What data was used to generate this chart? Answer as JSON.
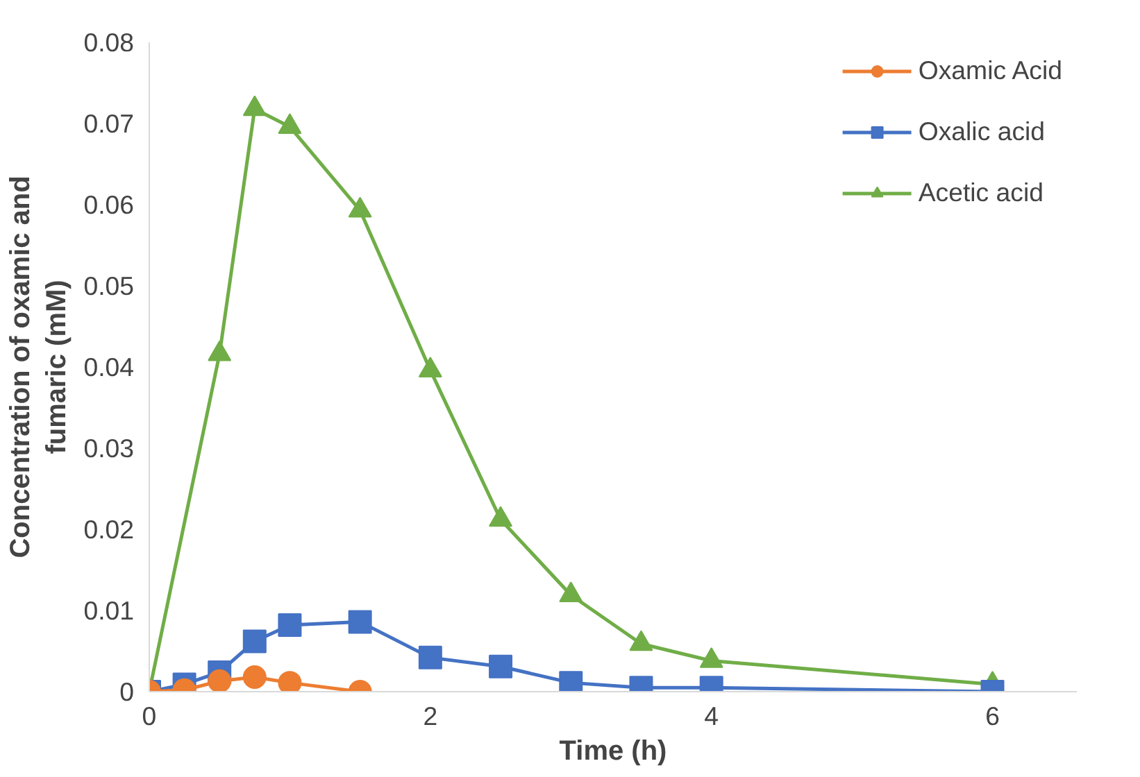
{
  "chart_data": {
    "type": "line",
    "xlabel": "Time (h)",
    "ylabel": "Concentration of oxamic and fumaric (mM)",
    "xlim": [
      0,
      6.6
    ],
    "xticks": [
      0,
      2,
      4,
      6
    ],
    "ylim": [
      0,
      0.08
    ],
    "yticks": [
      0,
      0.01,
      0.02,
      0.03,
      0.04,
      0.05,
      0.06,
      0.07,
      0.08
    ],
    "grid": false,
    "legend": "top right",
    "series": [
      {
        "name": "Oxamic Acid",
        "color": "#ed7d31",
        "marker": "circle",
        "x": [
          0,
          0.25,
          0.5,
          0.75,
          1,
          1.5
        ],
        "values": [
          0,
          0.0002,
          0.0013,
          0.0018,
          0.0011,
          0
        ]
      },
      {
        "name": "Oxalic acid",
        "color": "#4472c4",
        "marker": "square",
        "x": [
          0,
          0.25,
          0.5,
          0.75,
          1,
          1.5,
          2,
          2.5,
          3,
          3.5,
          4,
          6
        ],
        "values": [
          0,
          0.0009,
          0.0024,
          0.0062,
          0.0082,
          0.0086,
          0.0042,
          0.0031,
          0.0011,
          0.0005,
          0.0005,
          0
        ]
      },
      {
        "name": "Acetic acid",
        "color": "#70ad47",
        "marker": "triangle",
        "x": [
          0,
          0.5,
          0.75,
          1,
          1.5,
          2,
          2.5,
          3,
          3.5,
          4,
          6
        ],
        "values": [
          0,
          0.0416,
          0.0718,
          0.0696,
          0.0593,
          0.0396,
          0.0212,
          0.0119,
          0.0059,
          0.0038,
          0.0009
        ]
      }
    ]
  }
}
